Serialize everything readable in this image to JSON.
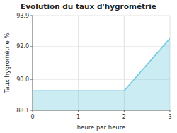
{
  "chart_data": {
    "type": "area",
    "title": "Evolution du taux d'hygrométrie",
    "x_label": "heure par heure",
    "y_label": "Taux hygrométrie %",
    "x": [
      0,
      2,
      3
    ],
    "values": [
      89.3,
      89.3,
      92.5
    ],
    "color": "#6dc8df",
    "xlim": [
      0,
      3
    ],
    "ylim": [
      88.1,
      93.9
    ],
    "xticks": [
      0,
      1,
      2,
      3
    ],
    "yticks": [
      88.1,
      {
        "value": 90,
        "label": "90.0"
      },
      {
        "value": 92,
        "label": "92.0"
      },
      93.9
    ],
    "grid": true
  }
}
